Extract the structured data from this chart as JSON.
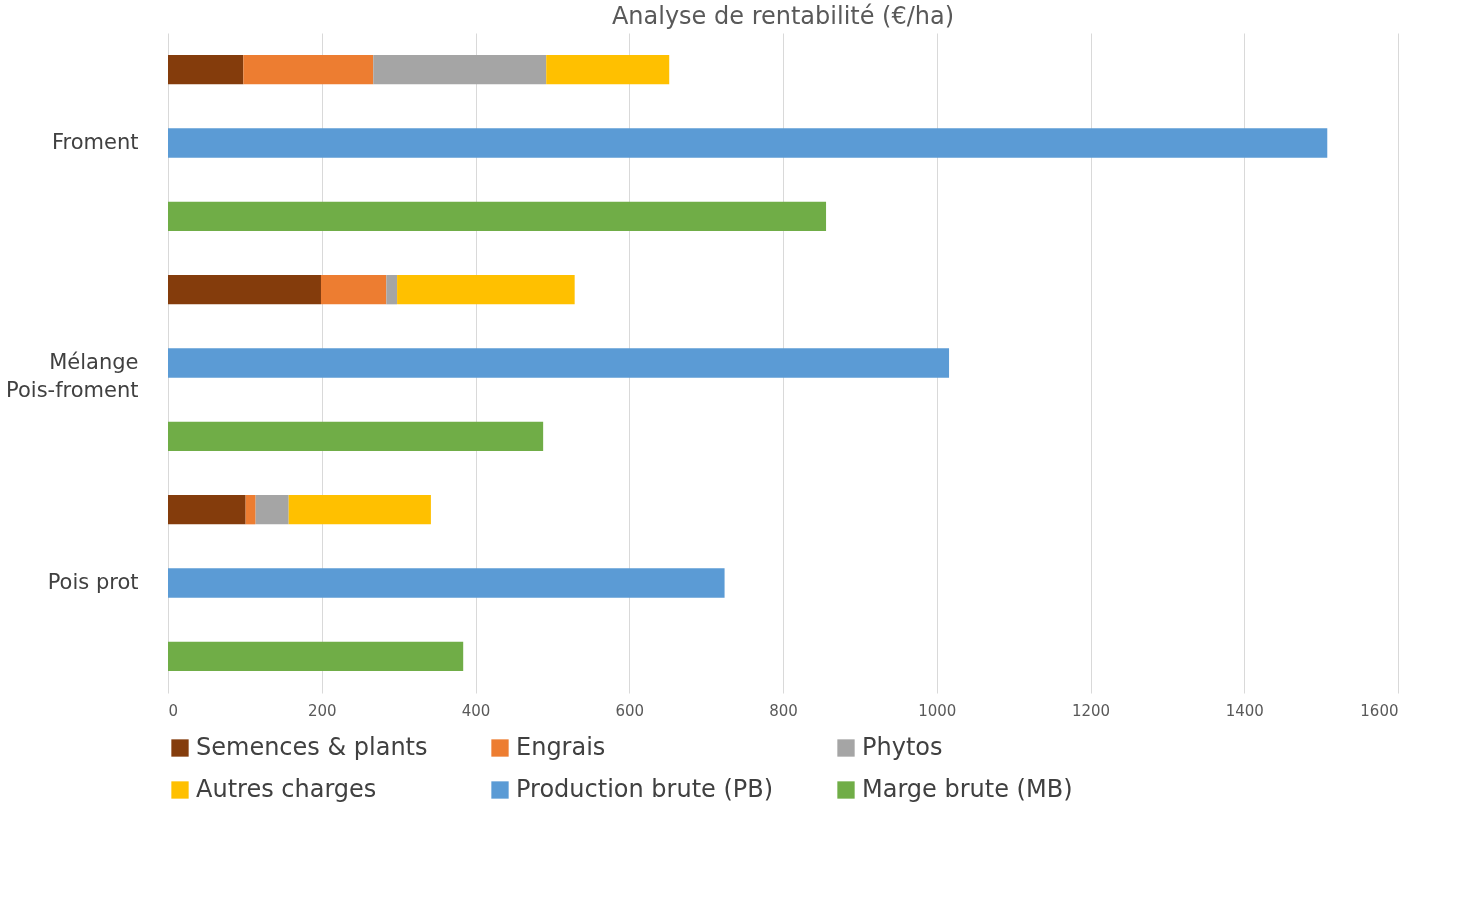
{
  "chart_data": {
    "type": "bar",
    "orientation": "horizontal",
    "stacked": true,
    "title": "Analyse de rentabilité (€/ha)",
    "categories": [
      null,
      "Froment",
      null,
      null,
      null,
      "Mélange\nPois-froment",
      null,
      null,
      null,
      "Pois prot",
      null
    ],
    "series": [
      {
        "name": "Semences & plants",
        "color": "#843c0c",
        "values": [
          98,
          null,
          null,
          null,
          199,
          null,
          null,
          null,
          101,
          null,
          null
        ]
      },
      {
        "name": "Engrais",
        "color": "#ed7d31",
        "values": [
          169,
          null,
          null,
          null,
          85,
          null,
          null,
          null,
          13,
          null,
          null
        ]
      },
      {
        "name": "Phytos",
        "color": "#a5a5a5",
        "values": [
          225,
          null,
          null,
          null,
          14,
          null,
          null,
          null,
          43,
          null,
          null
        ]
      },
      {
        "name": "Autres charges",
        "color": "#ffc000",
        "values": [
          160,
          null,
          null,
          null,
          231,
          null,
          null,
          null,
          185,
          null,
          null
        ]
      },
      {
        "name": "Production brute (PB)",
        "color": "#5b9bd5",
        "values": [
          null,
          1508,
          null,
          null,
          null,
          1016,
          null,
          null,
          null,
          724,
          null
        ]
      },
      {
        "name": "Marge brute (MB)",
        "color": "#70ad47",
        "values": [
          null,
          null,
          856,
          null,
          null,
          null,
          488,
          null,
          null,
          null,
          384
        ]
      }
    ],
    "xlim": [
      0,
      1600
    ],
    "xticks": [
      0,
      200,
      400,
      600,
      800,
      1000,
      1200,
      1400,
      1600
    ],
    "grid": "x",
    "legend": "bottom"
  }
}
